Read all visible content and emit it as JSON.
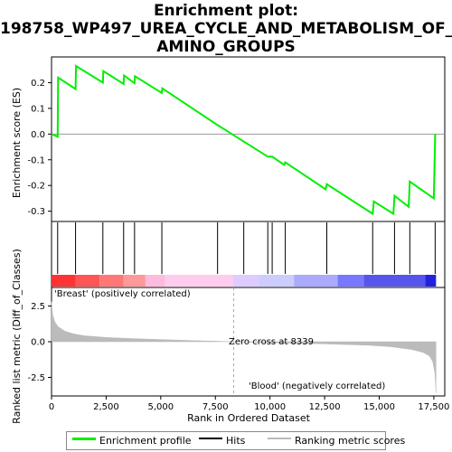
{
  "title_lines": [
    "Enrichment plot:",
    "198758_WP497_UREA_CYCLE_AND_METABOLISM_OF_",
    "AMINO_GROUPS"
  ],
  "colors": {
    "es_line": "#00ee00",
    "hits": "#000000",
    "metric_fill": "#bbbbbb",
    "positive_label": "#cc0000",
    "negative_label": "#0000cc"
  },
  "chart_data": {
    "type": "line",
    "x_label": "Rank in Ordered Dataset",
    "x_ticks": [
      0,
      2500,
      5000,
      7500,
      10000,
      12500,
      15000,
      17500
    ],
    "x_tick_labels": [
      "0",
      "2,500",
      "5,000",
      "7,500",
      "10,000",
      "12,500",
      "15,000",
      "17,500"
    ],
    "xlim": [
      0,
      18000
    ],
    "es_panel": {
      "ylabel": "Enrichment score (ES)",
      "ylim": [
        -0.34,
        0.3
      ],
      "y_ticks": [
        0.2,
        0.1,
        0.0,
        -0.1,
        -0.2,
        -0.3
      ],
      "y_tick_labels": [
        "0.2",
        "0.1",
        "0.0",
        "-0.1",
        "-0.2",
        "-0.3"
      ],
      "es_curve": {
        "x": [
          0,
          280,
          300,
          1100,
          1120,
          2350,
          2370,
          3300,
          3320,
          3800,
          3820,
          5050,
          5070,
          7600,
          9900,
          10100,
          10650,
          10700,
          12550,
          12600,
          14700,
          14750,
          15650,
          15700,
          16350,
          16400,
          17500,
          17560
        ],
        "y": [
          0.0,
          -0.01,
          0.22,
          0.175,
          0.265,
          0.2,
          0.245,
          0.195,
          0.228,
          0.198,
          0.225,
          0.16,
          0.178,
          0.035,
          -0.088,
          -0.088,
          -0.12,
          -0.11,
          -0.215,
          -0.195,
          -0.31,
          -0.262,
          -0.31,
          -0.24,
          -0.283,
          -0.185,
          -0.25,
          0.0
        ]
      }
    },
    "hits_x": [
      280,
      1100,
      2350,
      3300,
      3800,
      5050,
      7600,
      8800,
      9900,
      10100,
      10700,
      12600,
      14700,
      15700,
      16400,
      17560
    ],
    "rank_bar": {
      "colors": [
        "#ff3333",
        "#ff5555",
        "#ff7777",
        "#ff9999",
        "#ffbbdd",
        "#ffccee",
        "#ddccff",
        "#ccccff",
        "#aaaaff",
        "#7777ff",
        "#5555ee",
        "#2222dd"
      ],
      "boundaries": [
        0,
        1100,
        2200,
        3300,
        4300,
        5200,
        8300,
        9500,
        11100,
        13100,
        14300,
        17100,
        17600
      ]
    },
    "metric_panel": {
      "ylabel": "Ranked list metric (Diff_of_Classes)",
      "ylim": [
        -3.8,
        3.8
      ],
      "y_ticks": [
        2.5,
        0.0,
        -2.5
      ],
      "y_tick_labels": [
        "2.5",
        "0.0",
        "-2.5"
      ],
      "zero_cross": 8339,
      "zero_cross_label": "Zero cross at 8339",
      "positive_label": "'Breast' (positively correlated)",
      "negative_label": "'Blood' (negatively correlated)",
      "metric_curve": {
        "x": [
          0,
          50,
          150,
          300,
          600,
          1000,
          1500,
          2500,
          4000,
          6000,
          8339,
          10000,
          12500,
          14500,
          15500,
          16500,
          17000,
          17300,
          17450,
          17550,
          17600
        ],
        "y": [
          2.8,
          1.9,
          1.4,
          1.05,
          0.75,
          0.55,
          0.42,
          0.3,
          0.2,
          0.1,
          0.0,
          -0.07,
          -0.15,
          -0.25,
          -0.35,
          -0.55,
          -0.75,
          -1.0,
          -1.4,
          -2.2,
          -3.6
        ]
      }
    }
  },
  "legend": {
    "items": [
      {
        "label": "Enrichment profile",
        "color": "#00ee00"
      },
      {
        "label": "Hits",
        "color": "#000000"
      },
      {
        "label": "Ranking metric scores",
        "color": "#bbbbbb"
      }
    ]
  }
}
